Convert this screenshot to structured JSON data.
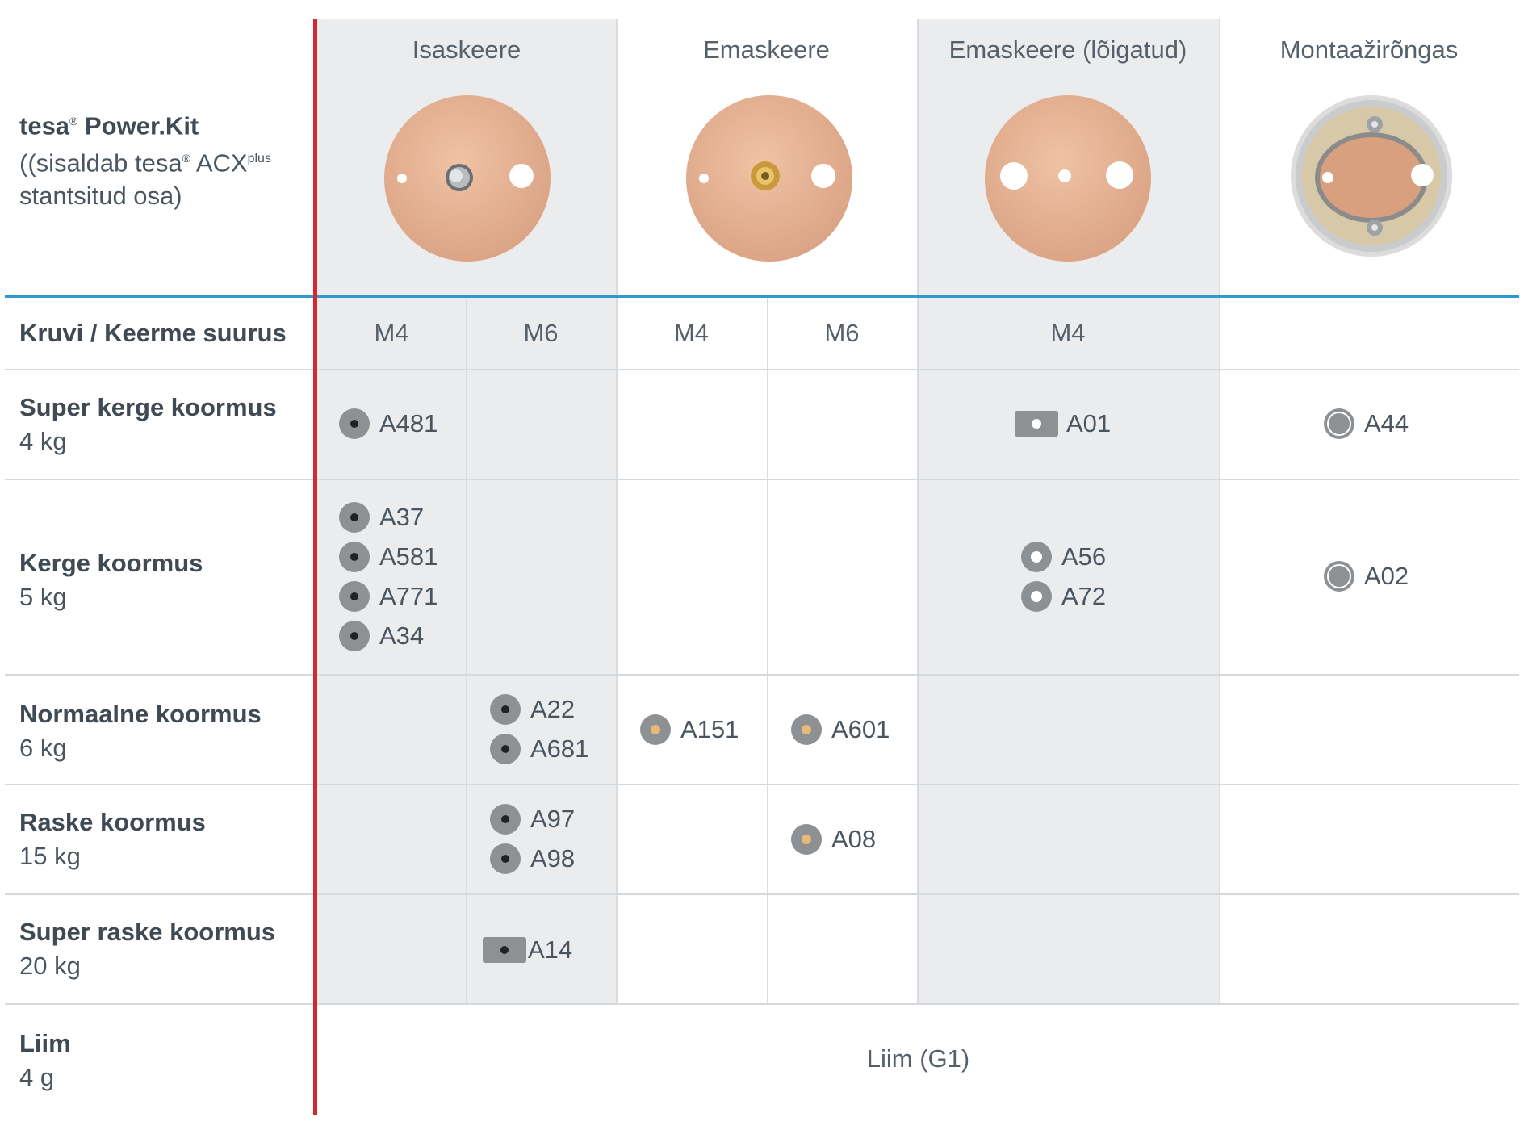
{
  "product": {
    "brand": "tesa",
    "reg": "®",
    "name": "Power.Kit",
    "line2_pre": "((sisaldab tesa",
    "line2_reg": "®",
    "line2_post": " ACX",
    "line2_sup": "plus",
    "line3": "stantsitud osa)"
  },
  "headers": [
    "Isaskeere",
    "Emaskeere",
    "Emaskeere (lõigatud)",
    "Montaažirõngas"
  ],
  "size_label": "Kruvi / Keerme suurus",
  "sizes": [
    "M4",
    "M6",
    "M4",
    "M6",
    "M4"
  ],
  "rows": [
    {
      "title": "Super kerge koormus",
      "sub": "4 kg"
    },
    {
      "title": "Kerge koormus",
      "sub": "5 kg"
    },
    {
      "title": "Normaalne koormus",
      "sub": "6 kg"
    },
    {
      "title": "Raske koormus",
      "sub": "15 kg"
    },
    {
      "title": "Super raske koormus",
      "sub": "20 kg"
    },
    {
      "title": "Liim",
      "sub": "4 g"
    }
  ],
  "items": {
    "a481": "A481",
    "a01": "A01",
    "a44": "A44",
    "a37": "A37",
    "a581": "A581",
    "a771": "A771",
    "a34": "A34",
    "a56": "A56",
    "a72": "A72",
    "a02": "A02",
    "a22": "A22",
    "a681": "A681",
    "a151": "A151",
    "a601": "A601",
    "a97": "A97",
    "a98": "A98",
    "a08": "A08",
    "a14": "A14"
  },
  "glue": "Liim (G1)",
  "colors": {
    "accent_red": "#d6262e",
    "accent_blue": "#2f9ad2",
    "band": "#ebeced"
  }
}
